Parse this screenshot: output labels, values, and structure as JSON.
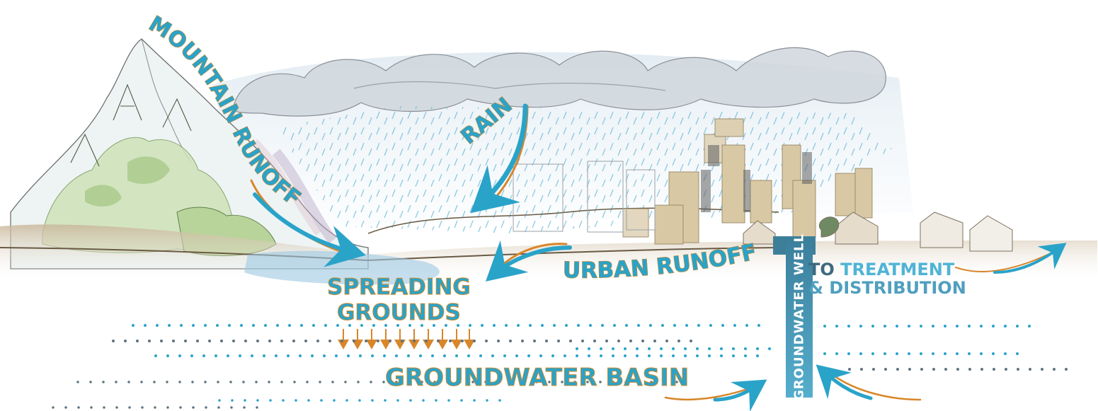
{
  "labels": {
    "mountain_runoff": "MOUNTAIN RUNOFF",
    "rain": "RAIN",
    "urban_runoff": "URBAN RUNOFF",
    "spreading_line1": "SPREADING",
    "spreading_line2": "GROUNDS",
    "groundwater_basin": "GROUNDWATER BASIN",
    "groundwater_well": "GROUNDWATER WELL",
    "treatment_word1": "TO",
    "treatment_word2": "TREATMENT",
    "treatment_line2": "& DISTRIBUTION"
  },
  "colors": {
    "label_blue": "#2aa3c9",
    "label_outline": "#c98a2e",
    "well": "#3d7f99",
    "arrow_blue": "#2aa3c9",
    "arrow_orange": "#d8862a",
    "building_tan": "#d8c9a4",
    "dot_blue": "#2aa3c9",
    "dot_gray": "#5f7380"
  }
}
